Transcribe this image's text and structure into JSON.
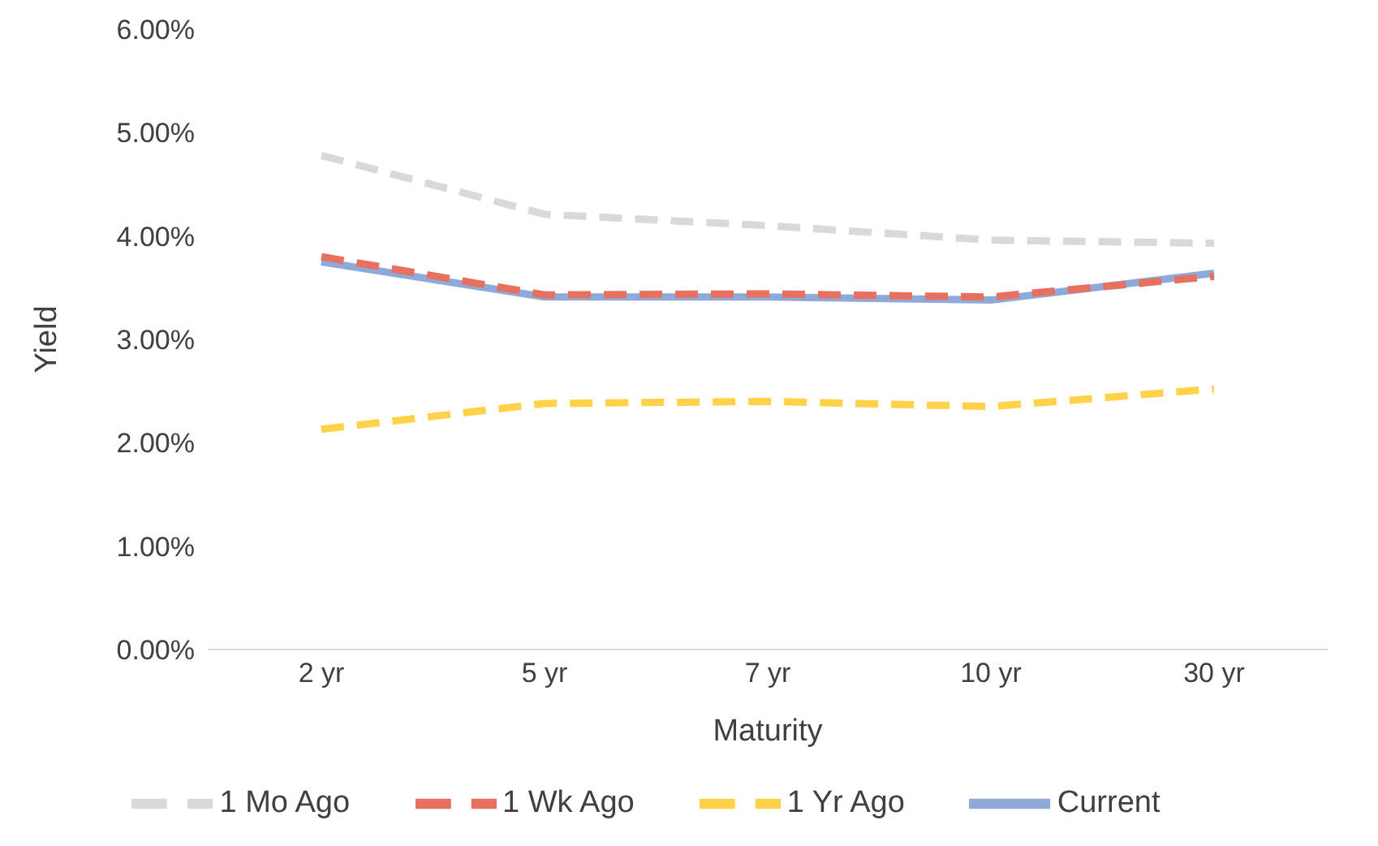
{
  "chart_data": {
    "type": "line",
    "xlabel": "Maturity",
    "ylabel": "Yield",
    "categories": [
      "2 yr",
      "5 yr",
      "7 yr",
      "10 yr",
      "30 yr"
    ],
    "series": [
      {
        "name": "Current",
        "color": "#8eaadb",
        "line_style": "solid",
        "values": [
          3.75,
          3.41,
          3.41,
          3.38,
          3.64
        ]
      },
      {
        "name": "1 Wk Ago",
        "color": "#e8705f",
        "line_style": "dashed",
        "values": [
          3.8,
          3.43,
          3.44,
          3.41,
          3.61
        ]
      },
      {
        "name": "1 Mo Ago",
        "color": "#d9d9d9",
        "line_style": "dashed",
        "values": [
          4.78,
          4.21,
          4.1,
          3.96,
          3.93
        ]
      },
      {
        "name": "1 Yr Ago",
        "color": "#ffd24a",
        "line_style": "dashed",
        "values": [
          2.13,
          2.38,
          2.4,
          2.35,
          2.52
        ]
      }
    ],
    "ylim": [
      0,
      6
    ],
    "yticks": [
      {
        "value": 0,
        "label": "0.00%"
      },
      {
        "value": 1,
        "label": "1.00%"
      },
      {
        "value": 2,
        "label": "2.00%"
      },
      {
        "value": 3,
        "label": "3.00%"
      },
      {
        "value": 4,
        "label": "4.00%"
      },
      {
        "value": 5,
        "label": "5.00%"
      },
      {
        "value": 6,
        "label": "6.00%"
      }
    ],
    "grid": false,
    "legend": "bottom",
    "marker": "none"
  }
}
